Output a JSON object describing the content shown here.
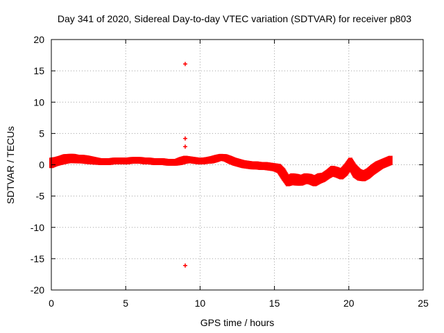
{
  "chart_data": {
    "type": "scatter",
    "title": "Day 341 of 2020, Sidereal Day-to-day VTEC variation (SDTVAR) for receiver p803",
    "xlabel": "GPS time / hours",
    "ylabel": "SDTVAR / TECUs",
    "xlim": [
      0,
      25
    ],
    "ylim": [
      -20,
      20
    ],
    "xticks": [
      0,
      5,
      10,
      15,
      20,
      25
    ],
    "yticks": [
      -20,
      -15,
      -10,
      -5,
      0,
      5,
      10,
      15,
      20
    ],
    "grid": true,
    "marker": "+",
    "color": "#ff0000",
    "series": [
      {
        "name": "SDTVAR",
        "x": [
          0,
          0.3,
          0.6,
          0.9,
          1.2,
          1.5,
          1.8,
          2.1,
          2.4,
          2.7,
          3.0,
          3.3,
          3.6,
          3.9,
          4.2,
          4.5,
          4.8,
          5.1,
          5.4,
          5.7,
          6.0,
          6.3,
          6.6,
          6.9,
          7.2,
          7.5,
          7.8,
          8.1,
          8.4,
          8.7,
          9.0,
          9.3,
          9.6,
          9.9,
          10.2,
          10.5,
          10.8,
          11.1,
          11.4,
          11.7,
          12.0,
          12.3,
          12.6,
          12.9,
          13.2,
          13.5,
          13.8,
          14.1,
          14.4,
          14.7,
          15.0,
          15.3,
          15.6,
          15.9,
          16.2,
          16.5,
          16.8,
          17.1,
          17.4,
          17.7,
          18.0,
          18.3,
          18.6,
          18.9,
          19.2,
          19.5,
          19.8,
          20.1,
          20.4,
          20.7,
          21.0,
          21.3,
          21.6,
          21.9,
          22.2,
          22.5,
          22.8,
          9.0,
          9.0,
          9.0,
          9.0
        ],
        "y": [
          0.3,
          0.5,
          0.7,
          0.9,
          1.0,
          1.0,
          0.9,
          0.9,
          0.8,
          0.7,
          0.6,
          0.5,
          0.5,
          0.5,
          0.6,
          0.6,
          0.6,
          0.6,
          0.7,
          0.7,
          0.7,
          0.6,
          0.6,
          0.5,
          0.5,
          0.5,
          0.4,
          0.4,
          0.4,
          0.6,
          0.8,
          0.8,
          0.7,
          0.6,
          0.6,
          0.7,
          0.8,
          1.0,
          1.2,
          1.1,
          0.8,
          0.5,
          0.3,
          0.1,
          0.0,
          -0.1,
          -0.1,
          -0.2,
          -0.2,
          -0.3,
          -0.4,
          -0.6,
          -1.5,
          -2.6,
          -2.3,
          -2.4,
          -2.5,
          -2.2,
          -2.3,
          -2.6,
          -2.2,
          -2.0,
          -1.5,
          -1.0,
          -1.2,
          -1.5,
          -0.8,
          0.2,
          -1.0,
          -1.6,
          -1.8,
          -1.4,
          -0.8,
          -0.3,
          0.1,
          0.4,
          0.7,
          16.1,
          4.2,
          2.9,
          -16.1
        ],
        "band": [
          1.0,
          0.8,
          0.8,
          0.9,
          0.8,
          0.8,
          0.7,
          0.7,
          0.7,
          0.6,
          0.5,
          0.4,
          0.4,
          0.4,
          0.4,
          0.4,
          0.4,
          0.4,
          0.4,
          0.4,
          0.4,
          0.4,
          0.4,
          0.4,
          0.4,
          0.4,
          0.4,
          0.4,
          0.4,
          0.6,
          0.6,
          0.4,
          0.4,
          0.4,
          0.4,
          0.4,
          0.5,
          0.5,
          0.4,
          0.5,
          0.6,
          0.6,
          0.6,
          0.6,
          0.6,
          0.6,
          0.6,
          0.6,
          0.6,
          0.6,
          0.6,
          0.8,
          1.2,
          1.0,
          1.2,
          1.2,
          1.0,
          1.0,
          1.0,
          1.0,
          1.0,
          0.8,
          0.8,
          1.0,
          1.0,
          1.0,
          1.2,
          1.2,
          1.4,
          1.2,
          1.0,
          1.0,
          1.0,
          1.0,
          0.8,
          0.8,
          0.8,
          0,
          0,
          0,
          0
        ]
      }
    ]
  }
}
